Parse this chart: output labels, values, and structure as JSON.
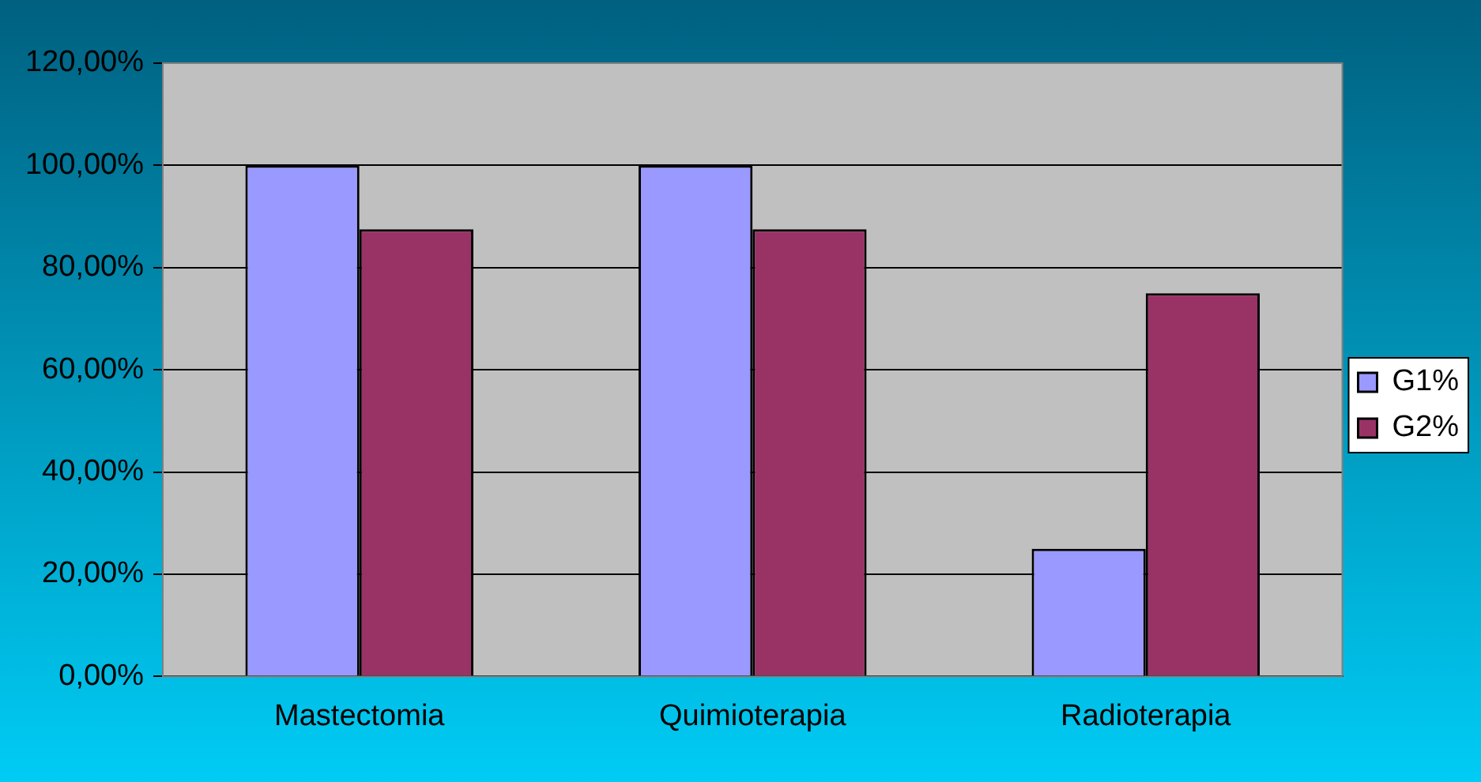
{
  "chart_data": {
    "type": "bar",
    "categories": [
      "Mastectomia",
      "Quimioterapia",
      "Radioterapia"
    ],
    "series": [
      {
        "name": "G1%",
        "color": "#9999ff",
        "values": [
          100,
          100,
          25
        ]
      },
      {
        "name": "G2%",
        "color": "#993366",
        "values": [
          87.5,
          87.5,
          75
        ]
      }
    ],
    "ylim": [
      0,
      120
    ],
    "yticks": [
      {
        "value": 0,
        "label": "0,00%"
      },
      {
        "value": 20,
        "label": "20,00%"
      },
      {
        "value": 40,
        "label": "40,00%"
      },
      {
        "value": 60,
        "label": "60,00%"
      },
      {
        "value": 80,
        "label": "80,00%"
      },
      {
        "value": 100,
        "label": "100,00%"
      },
      {
        "value": 120,
        "label": "120,00%"
      }
    ],
    "grid": "y",
    "legend": "right"
  }
}
